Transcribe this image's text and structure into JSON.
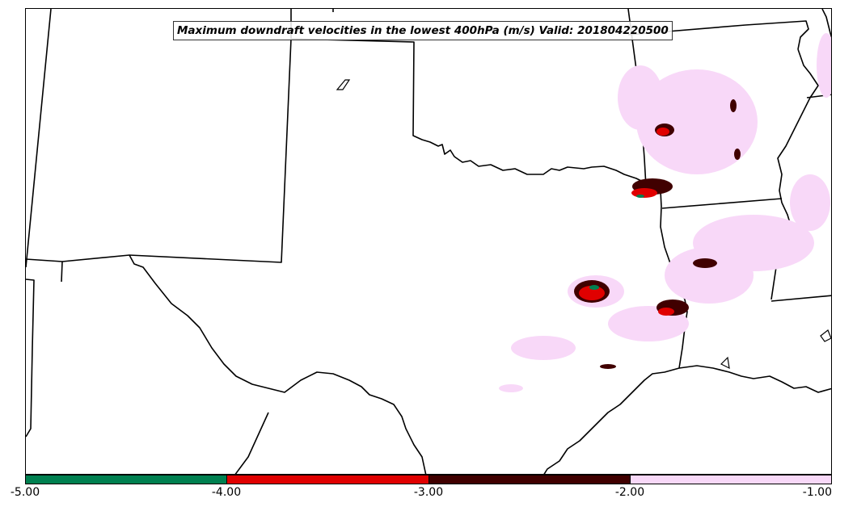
{
  "title": "Maximum downdraft velocities in the lowest 400hPa (m/s) Valid: 201804220500",
  "colorbar": {
    "segments": [
      {
        "range": "-5.00 to -4.00",
        "color": "#008050"
      },
      {
        "range": "-4.00 to -3.00",
        "color": "#e00000"
      },
      {
        "range": "-3.00 to -2.00",
        "color": "#400000"
      },
      {
        "range": "-2.00 to -1.00",
        "color": "#f8d8f8"
      }
    ],
    "ticks": [
      "-5.00",
      "-4.00",
      "-3.00",
      "-2.00",
      "-1.00"
    ]
  },
  "colors": {
    "weak": "#f8d8f8",
    "moderate": "#400000",
    "strong": "#e00000",
    "extreme": "#008050",
    "boundaries": "#000000"
  }
}
